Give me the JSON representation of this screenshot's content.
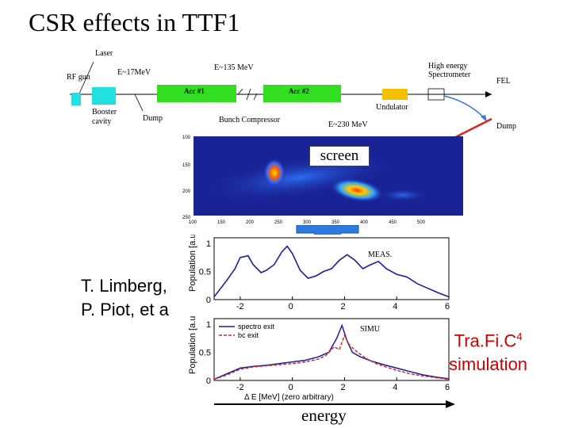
{
  "title": "CSR effects in TTF1",
  "beamline": {
    "laser": "Laser",
    "rf_gun": "RF gun",
    "e17": "E~17MeV",
    "e135": "E~135 MeV",
    "acc1": "Acc #1",
    "acc2": "Acc #2",
    "booster": "Booster",
    "cavity": "cavity",
    "dump1": "Dump",
    "bunch_compressor": "Bunch Compressor",
    "e230": "E~230 MeV",
    "undulator": "Undulator",
    "spectrometer_1": "High energy",
    "spectrometer_2": "Spectrometer",
    "fel": "FEL",
    "dump2": "Dump"
  },
  "screen_image": {
    "label": "screen",
    "y_ticks": [
      "100",
      "150",
      "200",
      "250"
    ],
    "x_ticks": [
      "100",
      "150",
      "200",
      "250",
      "300",
      "350",
      "400",
      "450",
      "500"
    ]
  },
  "authors": [
    "T. Limberg,",
    "P. Piot, et a"
  ],
  "simulation_label": {
    "line1": "Tra.Fi.C",
    "sup": "4",
    "line2": "simulation"
  },
  "energy_label": "energy",
  "colors": {
    "acc": "#33dd22",
    "booster": "#22e0e0",
    "undulator": "#f5c000",
    "red_arrow": "#dd2222",
    "blue_arrow": "#3377dd",
    "sim_label": "#cc0000"
  },
  "chart_data": [
    {
      "type": "line",
      "annotation": "MEAS.",
      "ylabel": "Population [a.u.]",
      "xlim": [
        -3,
        6
      ],
      "ylim": [
        0,
        1.1
      ],
      "x_ticks": [
        "-2",
        "0",
        "2",
        "4",
        "6"
      ],
      "y_ticks": [
        "1",
        "0.5",
        "0"
      ],
      "series": [
        {
          "x": [
            -3,
            -2.5,
            -2.2,
            -2,
            -1.7,
            -1.5,
            -1.2,
            -1,
            -0.7,
            -0.4,
            -0.2,
            0,
            0.3,
            0.6,
            0.9,
            1.2,
            1.5,
            1.8,
            2.1,
            2.4,
            2.7,
            3.0,
            3.3,
            3.6,
            4.0,
            4.4,
            4.8,
            5.2,
            5.6,
            6.0
          ],
          "y": [
            0.05,
            0.35,
            0.55,
            0.75,
            0.78,
            0.62,
            0.48,
            0.52,
            0.62,
            0.85,
            0.95,
            0.82,
            0.52,
            0.38,
            0.42,
            0.5,
            0.55,
            0.7,
            0.8,
            0.7,
            0.55,
            0.62,
            0.68,
            0.55,
            0.45,
            0.4,
            0.28,
            0.2,
            0.12,
            0.05
          ]
        }
      ]
    },
    {
      "type": "line",
      "annotation": "SIMU",
      "ylabel": "Population [a.u.]",
      "xlabel": "Δ E [MeV] (zero arbitrary)",
      "xlim": [
        -3,
        6
      ],
      "ylim": [
        0,
        1.1
      ],
      "x_ticks": [
        "-2",
        "0",
        "2",
        "4",
        "6"
      ],
      "y_ticks": [
        "1",
        "0.5",
        "0"
      ],
      "series": [
        {
          "name": "spectro exit",
          "x": [
            -3,
            -2.5,
            -2,
            -1.5,
            -1,
            -0.5,
            0,
            0.5,
            1.0,
            1.4,
            1.7,
            1.9,
            2.1,
            2.3,
            2.6,
            3.0,
            3.5,
            4.0,
            4.5,
            5.0,
            5.5,
            6.0
          ],
          "y": [
            0.02,
            0.12,
            0.22,
            0.25,
            0.27,
            0.3,
            0.33,
            0.36,
            0.42,
            0.5,
            0.75,
            0.98,
            0.7,
            0.5,
            0.42,
            0.35,
            0.28,
            0.22,
            0.16,
            0.1,
            0.06,
            0.03
          ]
        },
        {
          "name": "bc exit",
          "x": [
            -3,
            -2.5,
            -2,
            -1.5,
            -1,
            -0.5,
            0,
            0.5,
            1.0,
            1.3,
            1.6,
            1.8,
            2.0,
            2.2,
            2.5,
            2.8,
            3.2,
            3.6,
            4.0,
            4.5,
            5.0,
            5.5,
            6.0
          ],
          "y": [
            0.02,
            0.1,
            0.2,
            0.24,
            0.26,
            0.28,
            0.3,
            0.33,
            0.38,
            0.45,
            0.6,
            0.55,
            0.8,
            0.62,
            0.5,
            0.4,
            0.3,
            0.24,
            0.18,
            0.12,
            0.08,
            0.05,
            0.02
          ]
        }
      ]
    }
  ]
}
